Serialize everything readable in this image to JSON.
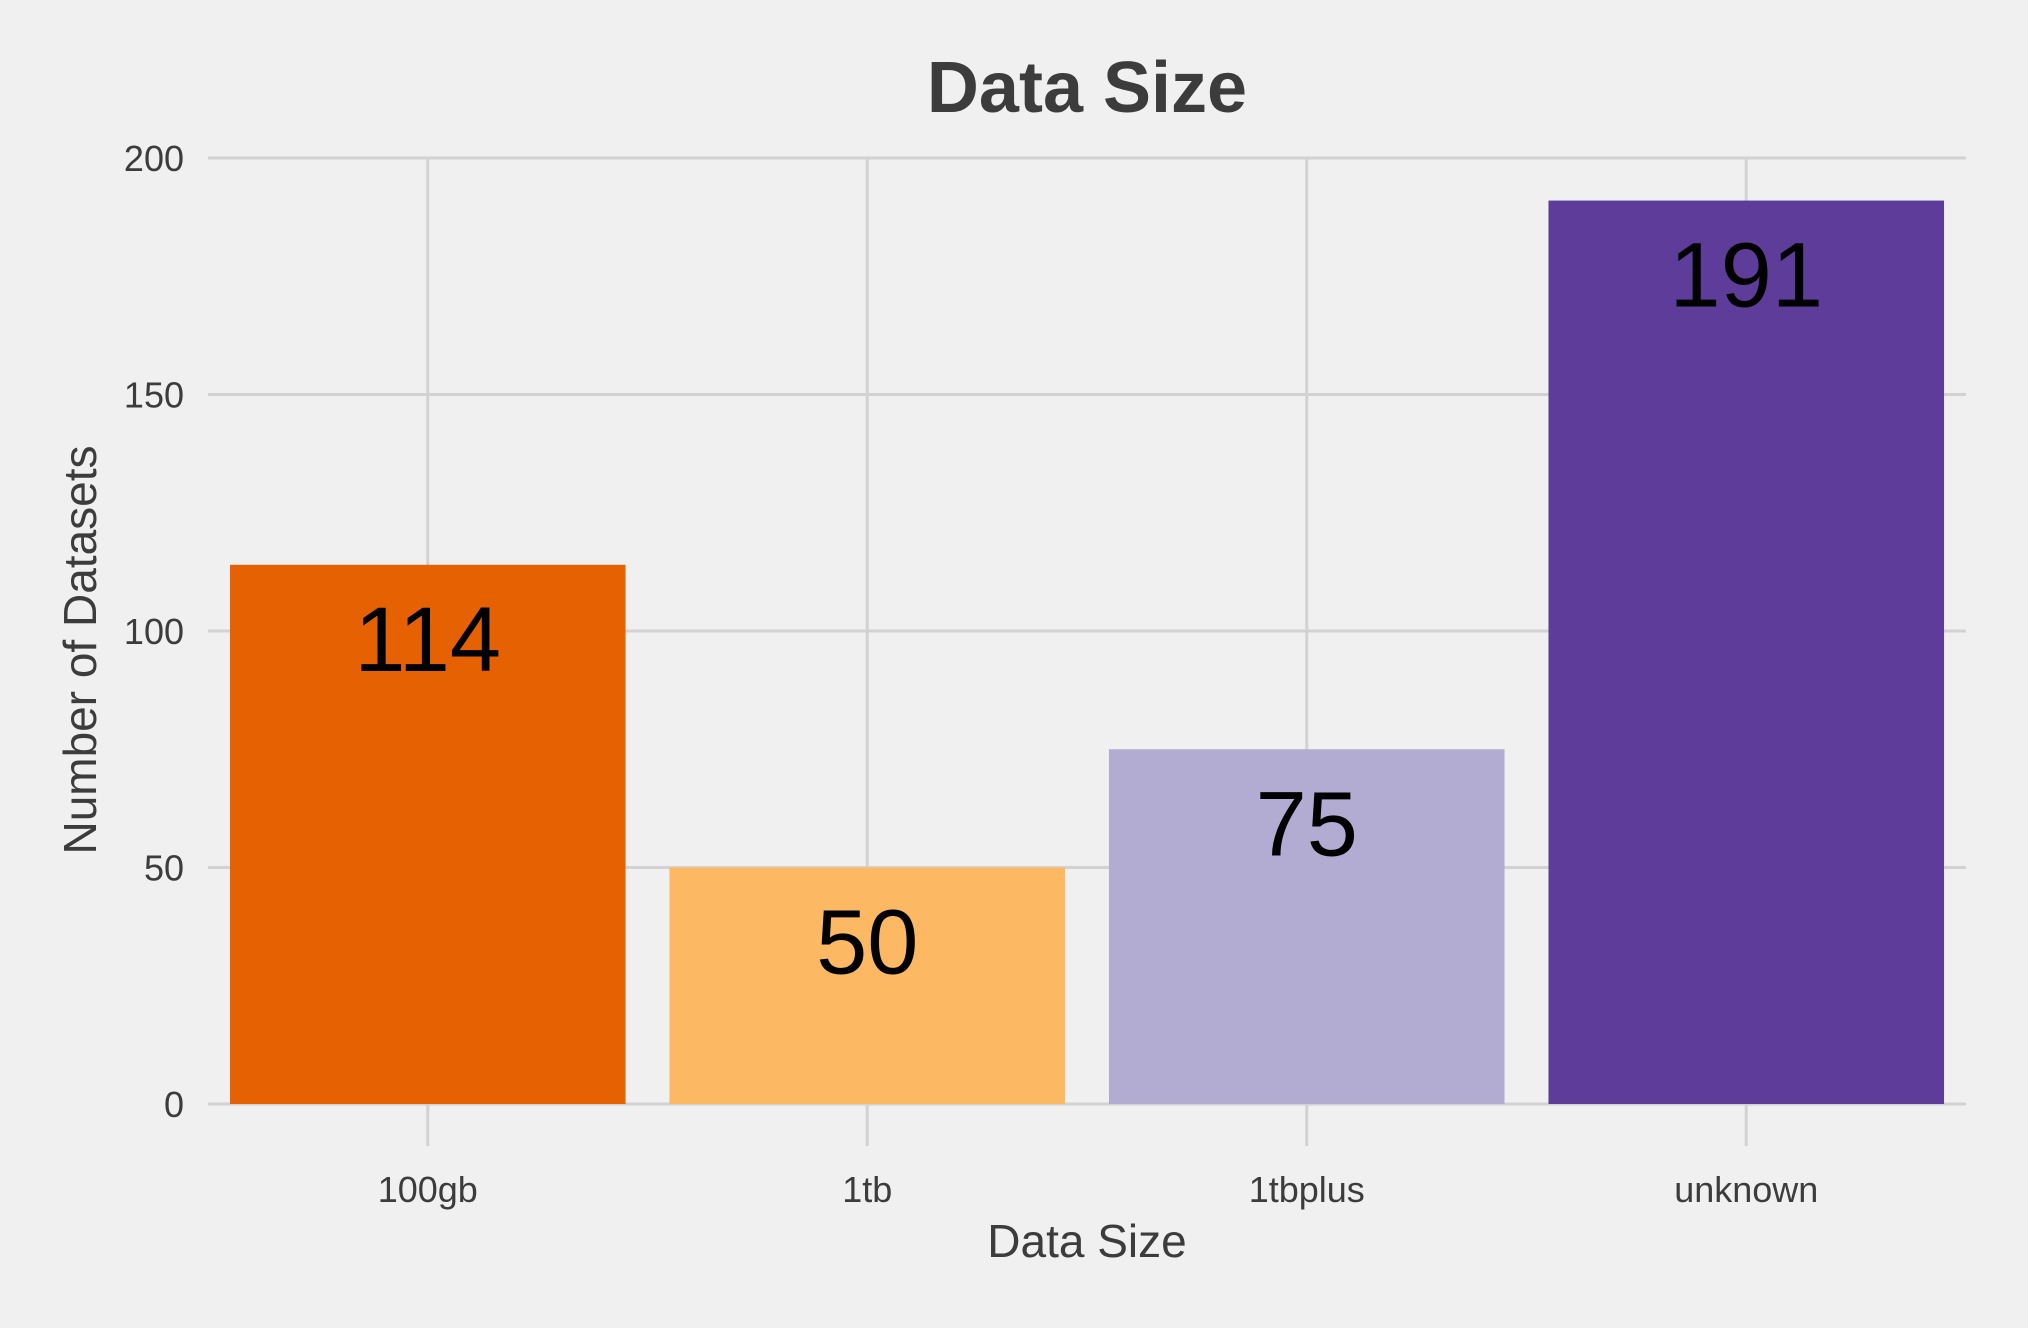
{
  "chart_data": {
    "type": "bar",
    "title": "Data Size",
    "xlabel": "Data Size",
    "ylabel": "Number of Datasets",
    "categories": [
      "100gb",
      "1tb",
      "1tbplus",
      "unknown"
    ],
    "values": [
      114,
      50,
      75,
      191
    ],
    "data_labels": [
      "114",
      "50",
      "75",
      "191"
    ],
    "colors": [
      "#e66101",
      "#fdb863",
      "#b2abd2",
      "#5e3c99"
    ],
    "ylim": [
      0,
      200
    ],
    "yticks": [
      0,
      50,
      100,
      150,
      200
    ],
    "ytick_labels": [
      "0",
      "50",
      "100",
      "150",
      "200"
    ],
    "grid": true,
    "legend": "none",
    "background": "#f0f0f0"
  }
}
